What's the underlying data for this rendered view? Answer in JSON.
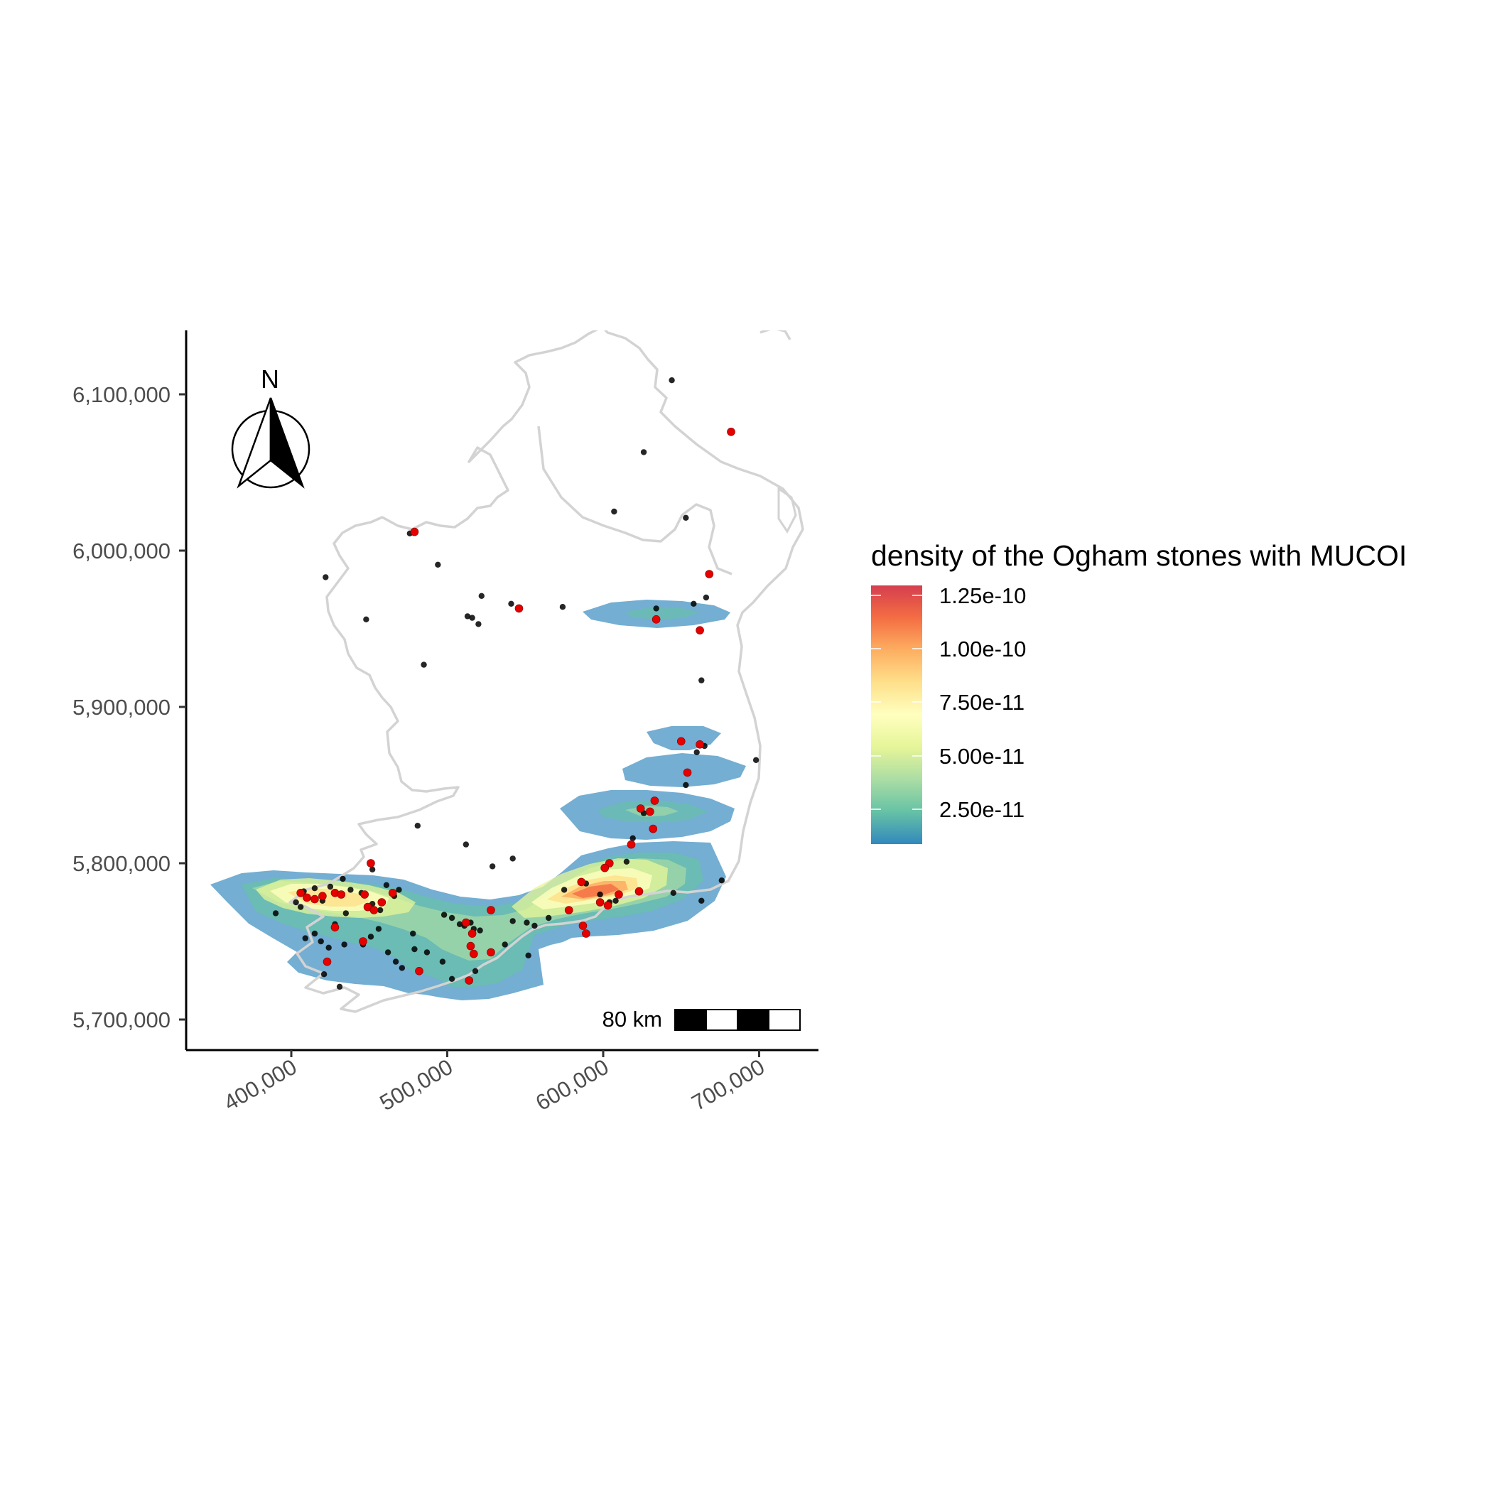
{
  "map": {
    "axes": {
      "x_ticks": [
        "400,000",
        "500,000",
        "600,000",
        "700,000"
      ],
      "y_ticks": [
        "6,100,000",
        "6,000,000",
        "5,900,000",
        "5,800,000",
        "5,700,000"
      ],
      "x_range": [
        333000,
        740000
      ],
      "y_range": [
        5680000,
        6140000
      ]
    },
    "north_arrow": {
      "label": "N"
    },
    "scale_bar": {
      "label": "80 km"
    },
    "legend": {
      "title": "density of the Ogham stones with MUCOI",
      "labels": [
        "1.25e-10",
        "1.00e-10",
        "7.50e-11",
        "5.00e-11",
        "2.50e-11"
      ],
      "colors": [
        "#D53E4F",
        "#F46D43",
        "#FDAE61",
        "#FEE08B",
        "#FFFFBF",
        "#E6F598",
        "#ABDDA4",
        "#66C2A5",
        "#3288BD"
      ]
    },
    "colors": {
      "land_outline": "#d3d3d3",
      "mucoi_point": "#e60000",
      "other_point": "#000000"
    },
    "points_other": [
      [
        644000,
        6109000
      ],
      [
        626000,
        6063000
      ],
      [
        607000,
        6025000
      ],
      [
        653000,
        6021000
      ],
      [
        476000,
        6011000
      ],
      [
        494000,
        5991000
      ],
      [
        422000,
        5983000
      ],
      [
        522000,
        5971000
      ],
      [
        541000,
        5966000
      ],
      [
        574000,
        5964000
      ],
      [
        513000,
        5958000
      ],
      [
        516000,
        5957000
      ],
      [
        520000,
        5953000
      ],
      [
        634000,
        5963000
      ],
      [
        658000,
        5966000
      ],
      [
        666000,
        5970000
      ],
      [
        485000,
        5927000
      ],
      [
        448000,
        5956000
      ],
      [
        663000,
        5917000
      ],
      [
        665000,
        5875000
      ],
      [
        698000,
        5866000
      ],
      [
        660000,
        5871000
      ],
      [
        653000,
        5850000
      ],
      [
        481000,
        5824000
      ],
      [
        512000,
        5812000
      ],
      [
        529000,
        5798000
      ],
      [
        542000,
        5803000
      ],
      [
        452000,
        5796000
      ],
      [
        390000,
        5768000
      ],
      [
        403000,
        5775000
      ],
      [
        408000,
        5782000
      ],
      [
        415000,
        5784000
      ],
      [
        420000,
        5776000
      ],
      [
        425000,
        5785000
      ],
      [
        433000,
        5790000
      ],
      [
        438000,
        5783000
      ],
      [
        445000,
        5781000
      ],
      [
        452000,
        5774000
      ],
      [
        457000,
        5770000
      ],
      [
        461000,
        5786000
      ],
      [
        466000,
        5779000
      ],
      [
        469000,
        5783000
      ],
      [
        409000,
        5752000
      ],
      [
        415000,
        5755000
      ],
      [
        419000,
        5750000
      ],
      [
        424000,
        5746000
      ],
      [
        428000,
        5761000
      ],
      [
        434000,
        5748000
      ],
      [
        446000,
        5748000
      ],
      [
        451000,
        5753000
      ],
      [
        456000,
        5758000
      ],
      [
        462000,
        5743000
      ],
      [
        467000,
        5737000
      ],
      [
        471000,
        5733000
      ],
      [
        479000,
        5745000
      ],
      [
        487000,
        5743000
      ],
      [
        497000,
        5737000
      ],
      [
        503000,
        5726000
      ],
      [
        508000,
        5761000
      ],
      [
        511000,
        5760000
      ],
      [
        515000,
        5762000
      ],
      [
        517000,
        5758000
      ],
      [
        521000,
        5757000
      ],
      [
        503000,
        5765000
      ],
      [
        498000,
        5767000
      ],
      [
        478000,
        5755000
      ],
      [
        542000,
        5763000
      ],
      [
        551000,
        5762000
      ],
      [
        556000,
        5760000
      ],
      [
        565000,
        5765000
      ],
      [
        575000,
        5783000
      ],
      [
        589000,
        5787000
      ],
      [
        598000,
        5780000
      ],
      [
        604000,
        5775000
      ],
      [
        608000,
        5776000
      ],
      [
        615000,
        5801000
      ],
      [
        619000,
        5816000
      ],
      [
        626000,
        5832000
      ],
      [
        645000,
        5781000
      ],
      [
        663000,
        5776000
      ],
      [
        676000,
        5789000
      ],
      [
        421000,
        5729000
      ],
      [
        431000,
        5721000
      ],
      [
        518000,
        5731000
      ],
      [
        552000,
        5741000
      ],
      [
        537000,
        5748000
      ],
      [
        406000,
        5772000
      ],
      [
        435000,
        5768000
      ]
    ],
    "points_mucoi": [
      [
        682000,
        6076000
      ],
      [
        668000,
        5985000
      ],
      [
        479000,
        6012000
      ],
      [
        546000,
        5963000
      ],
      [
        634000,
        5956000
      ],
      [
        662000,
        5949000
      ],
      [
        650000,
        5878000
      ],
      [
        662000,
        5876000
      ],
      [
        654000,
        5858000
      ],
      [
        633000,
        5840000
      ],
      [
        630000,
        5833000
      ],
      [
        624000,
        5835000
      ],
      [
        632000,
        5822000
      ],
      [
        618000,
        5812000
      ],
      [
        604000,
        5800000
      ],
      [
        601000,
        5797000
      ],
      [
        586000,
        5788000
      ],
      [
        578000,
        5770000
      ],
      [
        598000,
        5775000
      ],
      [
        603000,
        5773000
      ],
      [
        610000,
        5780000
      ],
      [
        623000,
        5782000
      ],
      [
        587000,
        5760000
      ],
      [
        589000,
        5755000
      ],
      [
        528000,
        5770000
      ],
      [
        512000,
        5762000
      ],
      [
        516000,
        5755000
      ],
      [
        515000,
        5747000
      ],
      [
        517000,
        5742000
      ],
      [
        528000,
        5743000
      ],
      [
        514000,
        5725000
      ],
      [
        482000,
        5731000
      ],
      [
        451000,
        5800000
      ],
      [
        406000,
        5781000
      ],
      [
        410000,
        5778000
      ],
      [
        415000,
        5777000
      ],
      [
        420000,
        5779000
      ],
      [
        428000,
        5781000
      ],
      [
        432000,
        5780000
      ],
      [
        447000,
        5780000
      ],
      [
        449000,
        5772000
      ],
      [
        453000,
        5770000
      ],
      [
        458000,
        5775000
      ],
      [
        465000,
        5781000
      ],
      [
        428000,
        5759000
      ],
      [
        446000,
        5750000
      ],
      [
        423000,
        5737000
      ]
    ]
  }
}
